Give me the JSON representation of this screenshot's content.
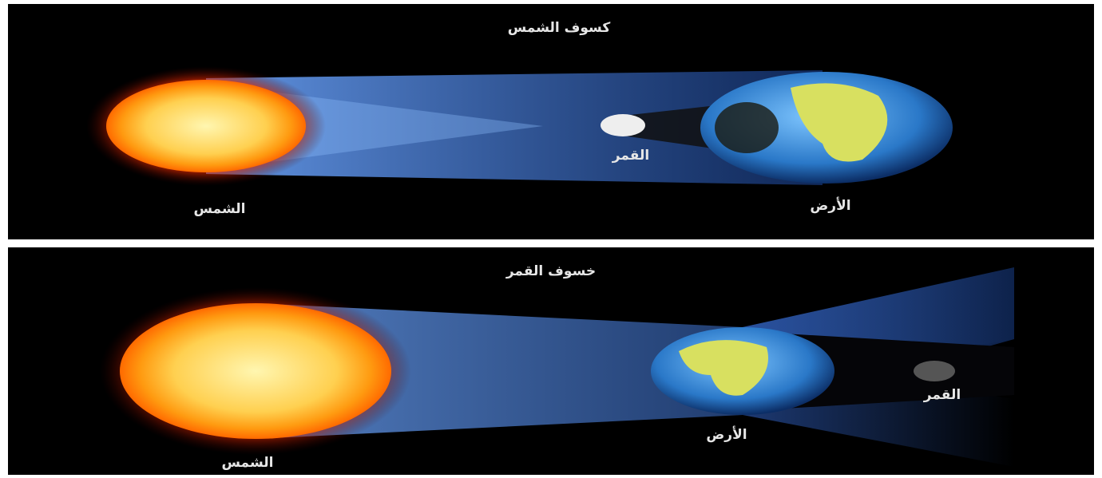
{
  "panels": [
    {
      "title": "كسوف الشمس",
      "sun": "الشمس",
      "moon": "القمر",
      "earth": "الأرض"
    },
    {
      "title": "خسوف القمر",
      "sun": "الشمس",
      "moon": "القمر",
      "earth": "الأرض"
    }
  ]
}
